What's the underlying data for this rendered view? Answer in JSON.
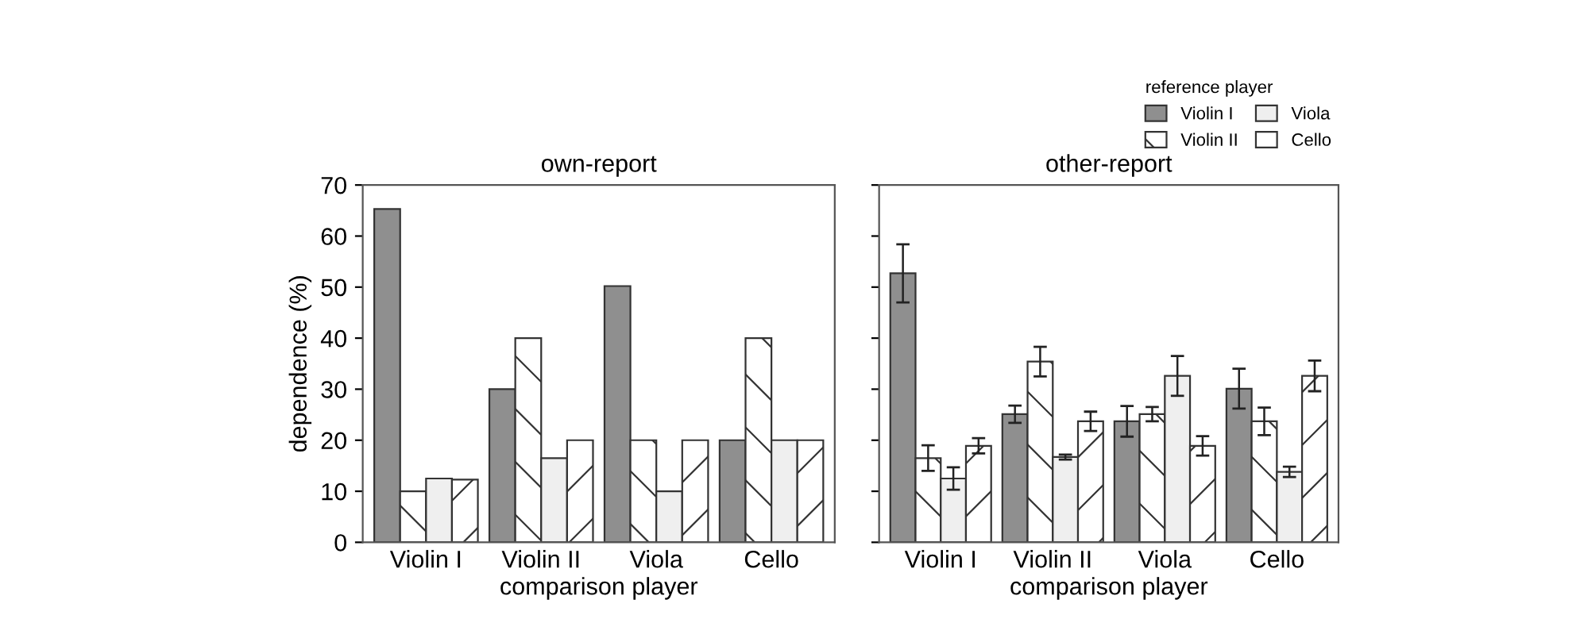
{
  "chart_data": [
    {
      "type": "bar",
      "title": "own-report",
      "xlabel": "comparison player",
      "ylabel": "dependence (%)",
      "categories": [
        "Violin I",
        "Violin II",
        "Viola",
        "Cello"
      ],
      "ylim": [
        0,
        70
      ],
      "yticks": [
        0,
        10,
        20,
        30,
        40,
        50,
        60,
        70
      ],
      "series": [
        {
          "color": "#8f8f8f",
          "values": [
            65.3,
            30,
            50.2,
            20
          ]
        },
        {
          "color": "#ffffff",
          "values": [
            10,
            40,
            20,
            40
          ]
        },
        {
          "color": "#efefef",
          "values": [
            12.5,
            16.5,
            10,
            20
          ]
        },
        {
          "color": "#ffffff",
          "values": [
            12.3,
            20,
            20,
            20
          ]
        }
      ]
    },
    {
      "type": "bar",
      "title": "other-report",
      "xlabel": "comparison player",
      "categories": [
        "Violin I",
        "Violin II",
        "Viola",
        "Cello"
      ],
      "ylim": [
        0,
        70
      ],
      "yticks": [
        0,
        10,
        20,
        30,
        40,
        50,
        60,
        70
      ],
      "tick_labels": "x",
      "legend": "top right",
      "legend_title": "reference player",
      "series": [
        {
          "name": "Violin I",
          "color": "#8f8f8f",
          "values": [
            52.7,
            25.1,
            23.7,
            30.1
          ],
          "errors": [
            5.7,
            1.7,
            3.0,
            3.9
          ]
        },
        {
          "name": "Violin II",
          "color": "#ffffff",
          "values": [
            16.5,
            35.4,
            25.1,
            23.7
          ],
          "errors": [
            2.5,
            2.9,
            1.4,
            2.7
          ]
        },
        {
          "name": "Viola",
          "color": "#efefef",
          "values": [
            12.5,
            16.7,
            32.6,
            13.8
          ],
          "errors": [
            2.2,
            0.5,
            3.9,
            1.0
          ]
        },
        {
          "name": "Cello",
          "color": "#ffffff",
          "values": [
            18.9,
            23.7,
            18.9,
            32.6
          ],
          "errors": [
            1.5,
            1.9,
            1.9,
            3.0
          ]
        }
      ]
    }
  ]
}
